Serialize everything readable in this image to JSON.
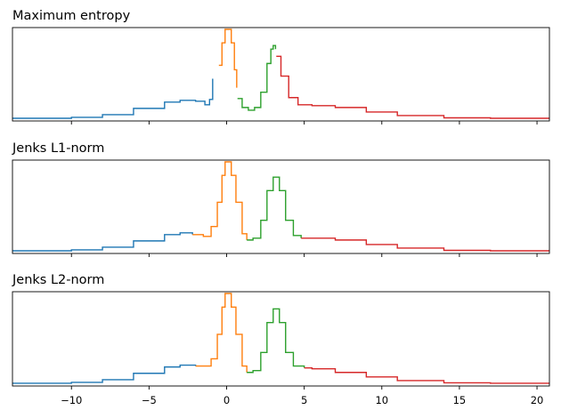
{
  "colors": {
    "c0": "#1f77b4",
    "c1": "#ff7f0e",
    "c2": "#2ca02c",
    "c3": "#d62728"
  },
  "chart_data": [
    {
      "type": "line",
      "title": "Maximum entropy",
      "xlim": [
        -13.8,
        20.8
      ],
      "ylim": [
        0,
        1.0
      ],
      "show_xtick_labels": false,
      "series": [
        {
          "color": "c0",
          "points": [
            [
              -13.8,
              0.01
            ],
            [
              -12,
              0.01
            ],
            [
              -10,
              0.02
            ],
            [
              -8,
              0.05
            ],
            [
              -6,
              0.12
            ],
            [
              -4,
              0.19
            ],
            [
              -3,
              0.21
            ],
            [
              -2,
              0.2
            ],
            [
              -1.4,
              0.16
            ],
            [
              -1.1,
              0.22
            ],
            [
              -0.9,
              0.45
            ]
          ]
        },
        {
          "color": "c1",
          "points": [
            [
              -0.5,
              0.6
            ],
            [
              -0.3,
              0.85
            ],
            [
              -0.1,
              1.0
            ],
            [
              0.1,
              1.0
            ],
            [
              0.3,
              0.85
            ],
            [
              0.5,
              0.55
            ],
            [
              0.65,
              0.35
            ]
          ]
        },
        {
          "color": "c2",
          "points": [
            [
              0.7,
              0.23
            ],
            [
              1.0,
              0.13
            ],
            [
              1.4,
              0.1
            ],
            [
              1.8,
              0.13
            ],
            [
              2.2,
              0.3
            ],
            [
              2.6,
              0.62
            ],
            [
              2.85,
              0.78
            ],
            [
              3.0,
              0.82
            ],
            [
              3.15,
              0.78
            ]
          ]
        },
        {
          "color": "c3",
          "points": [
            [
              3.2,
              0.7
            ],
            [
              3.5,
              0.48
            ],
            [
              4.0,
              0.24
            ],
            [
              4.6,
              0.16
            ],
            [
              5.5,
              0.15
            ],
            [
              7,
              0.13
            ],
            [
              9,
              0.08
            ],
            [
              11,
              0.04
            ],
            [
              14,
              0.015
            ],
            [
              17,
              0.01
            ],
            [
              20.8,
              0.01
            ]
          ]
        }
      ]
    },
    {
      "type": "line",
      "title": "Jenks L1-norm",
      "xlim": [
        -13.8,
        20.8
      ],
      "ylim": [
        0,
        1.0
      ],
      "show_xtick_labels": false,
      "series": [
        {
          "color": "c0",
          "points": [
            [
              -13.8,
              0.01
            ],
            [
              -12,
              0.01
            ],
            [
              -10,
              0.02
            ],
            [
              -8,
              0.05
            ],
            [
              -6,
              0.12
            ],
            [
              -4,
              0.19
            ],
            [
              -3,
              0.21
            ],
            [
              -2.2,
              0.19
            ]
          ]
        },
        {
          "color": "c1",
          "points": [
            [
              -2.2,
              0.19
            ],
            [
              -1.5,
              0.17
            ],
            [
              -1.0,
              0.28
            ],
            [
              -0.6,
              0.55
            ],
            [
              -0.3,
              0.85
            ],
            [
              -0.1,
              1.0
            ],
            [
              0.1,
              1.0
            ],
            [
              0.3,
              0.85
            ],
            [
              0.6,
              0.55
            ],
            [
              1.0,
              0.2
            ],
            [
              1.3,
              0.13
            ]
          ]
        },
        {
          "color": "c2",
          "points": [
            [
              1.3,
              0.13
            ],
            [
              1.7,
              0.15
            ],
            [
              2.2,
              0.35
            ],
            [
              2.6,
              0.68
            ],
            [
              3.0,
              0.83
            ],
            [
              3.4,
              0.68
            ],
            [
              3.8,
              0.35
            ],
            [
              4.3,
              0.18
            ],
            [
              4.8,
              0.15
            ]
          ]
        },
        {
          "color": "c3",
          "points": [
            [
              4.8,
              0.15
            ],
            [
              5.5,
              0.15
            ],
            [
              7,
              0.13
            ],
            [
              9,
              0.08
            ],
            [
              11,
              0.04
            ],
            [
              14,
              0.015
            ],
            [
              17,
              0.01
            ],
            [
              20.8,
              0.01
            ]
          ]
        }
      ]
    },
    {
      "type": "line",
      "title": "Jenks L2-norm",
      "xlim": [
        -13.8,
        20.8
      ],
      "ylim": [
        0,
        1.0
      ],
      "show_xtick_labels": true,
      "xticks": [
        -10,
        -5,
        0,
        5,
        10,
        15,
        20
      ],
      "xtick_labels": [
        "−10",
        "−5",
        "0",
        "5",
        "10",
        "15",
        "20"
      ],
      "series": [
        {
          "color": "c0",
          "points": [
            [
              -13.8,
              0.01
            ],
            [
              -12,
              0.01
            ],
            [
              -10,
              0.02
            ],
            [
              -8,
              0.05
            ],
            [
              -6,
              0.12
            ],
            [
              -4,
              0.19
            ],
            [
              -3,
              0.21
            ],
            [
              -2,
              0.2
            ]
          ]
        },
        {
          "color": "c1",
          "points": [
            [
              -2,
              0.2
            ],
            [
              -1.5,
              0.2
            ],
            [
              -1.0,
              0.28
            ],
            [
              -0.6,
              0.55
            ],
            [
              -0.3,
              0.85
            ],
            [
              -0.1,
              1.0
            ],
            [
              0.1,
              1.0
            ],
            [
              0.3,
              0.85
            ],
            [
              0.6,
              0.55
            ],
            [
              1.0,
              0.2
            ],
            [
              1.3,
              0.13
            ]
          ]
        },
        {
          "color": "c2",
          "points": [
            [
              1.3,
              0.13
            ],
            [
              1.7,
              0.15
            ],
            [
              2.2,
              0.35
            ],
            [
              2.6,
              0.68
            ],
            [
              3.0,
              0.83
            ],
            [
              3.4,
              0.68
            ],
            [
              3.8,
              0.35
            ],
            [
              4.3,
              0.2
            ],
            [
              5.0,
              0.18
            ]
          ]
        },
        {
          "color": "c3",
          "points": [
            [
              5.0,
              0.18
            ],
            [
              5.5,
              0.17
            ],
            [
              7,
              0.13
            ],
            [
              9,
              0.08
            ],
            [
              11,
              0.04
            ],
            [
              14,
              0.015
            ],
            [
              17,
              0.01
            ],
            [
              20.8,
              0.01
            ]
          ]
        }
      ]
    }
  ]
}
